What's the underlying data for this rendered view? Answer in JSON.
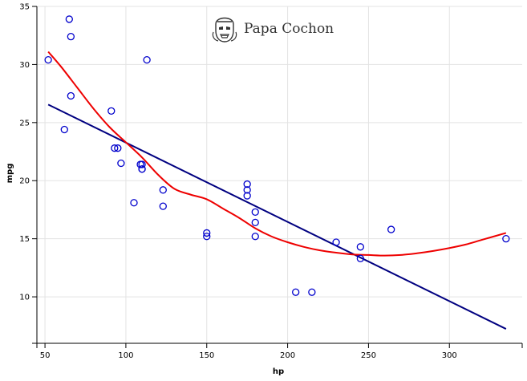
{
  "brand": {
    "name": "Papa Cochon",
    "logo_icon": "stormtrooper-icon"
  },
  "chart_data": {
    "type": "scatter",
    "xlabel": "hp",
    "ylabel": "mpg",
    "xlim": [
      45,
      345
    ],
    "ylim": [
      6,
      35
    ],
    "x_ticks": [
      50,
      100,
      150,
      200,
      250,
      300
    ],
    "y_ticks": [
      10,
      15,
      20,
      25,
      30,
      35
    ],
    "grid": true,
    "colors": {
      "points": "#0000cc",
      "linear_fit": "#000080",
      "smooth_fit": "#ee0000"
    },
    "series": [
      {
        "kind": "points",
        "x": [
          110,
          110,
          93,
          110,
          175,
          105,
          245,
          62,
          95,
          123,
          123,
          180,
          180,
          180,
          205,
          215,
          230,
          66,
          52,
          65,
          97,
          150,
          150,
          245,
          175,
          66,
          91,
          113,
          264,
          175,
          335,
          109
        ],
        "y": [
          21.0,
          21.0,
          22.8,
          21.4,
          18.7,
          18.1,
          14.3,
          24.4,
          22.8,
          19.2,
          17.8,
          16.4,
          17.3,
          15.2,
          10.4,
          10.4,
          14.7,
          32.4,
          30.4,
          33.9,
          21.5,
          15.5,
          15.2,
          13.3,
          19.2,
          27.3,
          26.0,
          30.4,
          15.8,
          19.7,
          15.0,
          21.4
        ]
      },
      {
        "kind": "linear-fit",
        "x": [
          52,
          335
        ],
        "y": [
          26.55,
          7.24
        ]
      },
      {
        "kind": "smooth-fit",
        "x": [
          52,
          60,
          70,
          80,
          90,
          100,
          110,
          120,
          130,
          140,
          150,
          160,
          170,
          180,
          190,
          200,
          210,
          220,
          230,
          240,
          250,
          260,
          270,
          280,
          290,
          300,
          310,
          320,
          335
        ],
        "y": [
          31.1,
          29.8,
          28.0,
          26.2,
          24.6,
          23.3,
          22.0,
          20.5,
          19.3,
          18.8,
          18.4,
          17.6,
          16.8,
          15.9,
          15.2,
          14.7,
          14.3,
          14.0,
          13.8,
          13.65,
          13.6,
          13.55,
          13.6,
          13.75,
          13.95,
          14.2,
          14.5,
          14.9,
          15.5
        ]
      }
    ]
  }
}
